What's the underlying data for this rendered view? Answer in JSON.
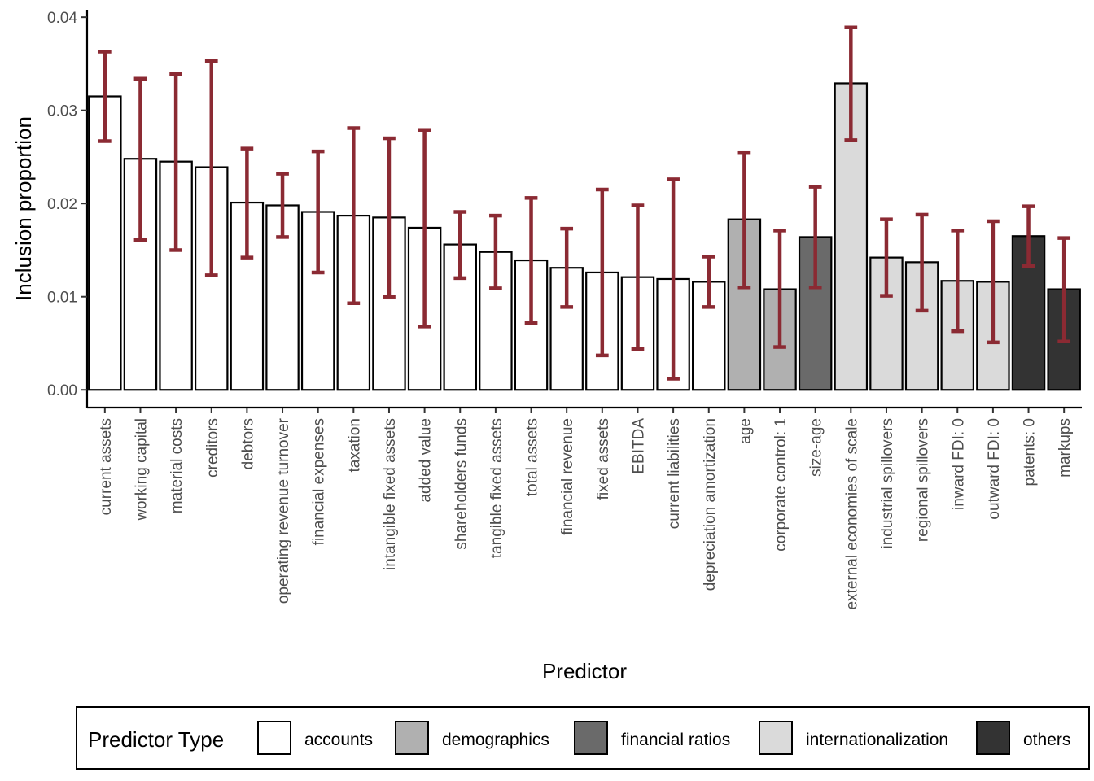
{
  "chart_data": {
    "type": "bar",
    "xlabel": "Predictor",
    "ylabel": "Inclusion proportion",
    "ylim": [
      -0.0019,
      0.0408
    ],
    "yticks": [
      0.0,
      0.01,
      0.02,
      0.03,
      0.04
    ],
    "ytick_labels": [
      "0.00",
      "0.01",
      "0.02",
      "0.03",
      "0.04"
    ],
    "error_bar_color": "#8b2a33",
    "legend": {
      "title": "Predictor Type",
      "position": "bottom",
      "entries": [
        {
          "label": "accounts",
          "color": "#ffffff"
        },
        {
          "label": "demographics",
          "color": "#b0b0b0"
        },
        {
          "label": "financial ratios",
          "color": "#6a6a6a"
        },
        {
          "label": "internationalization",
          "color": "#dadada"
        },
        {
          "label": "others",
          "color": "#333333"
        }
      ]
    },
    "bars": [
      {
        "category": "current assets",
        "value": 0.0315,
        "lower": 0.0267,
        "upper": 0.0363,
        "type": "accounts"
      },
      {
        "category": "working capital",
        "value": 0.0248,
        "lower": 0.0161,
        "upper": 0.0334,
        "type": "accounts"
      },
      {
        "category": "material costs",
        "value": 0.0245,
        "lower": 0.015,
        "upper": 0.0339,
        "type": "accounts"
      },
      {
        "category": "creditors",
        "value": 0.0239,
        "lower": 0.0123,
        "upper": 0.0353,
        "type": "accounts"
      },
      {
        "category": "debtors",
        "value": 0.0201,
        "lower": 0.0142,
        "upper": 0.0259,
        "type": "accounts"
      },
      {
        "category": "operating revenue turnover",
        "value": 0.0198,
        "lower": 0.0164,
        "upper": 0.0232,
        "type": "accounts"
      },
      {
        "category": "financial expenses",
        "value": 0.0191,
        "lower": 0.0126,
        "upper": 0.0256,
        "type": "accounts"
      },
      {
        "category": "taxation",
        "value": 0.0187,
        "lower": 0.0093,
        "upper": 0.0281,
        "type": "accounts"
      },
      {
        "category": "intangible fixed assets",
        "value": 0.0185,
        "lower": 0.01,
        "upper": 0.027,
        "type": "accounts"
      },
      {
        "category": "added value",
        "value": 0.0174,
        "lower": 0.0068,
        "upper": 0.0279,
        "type": "accounts"
      },
      {
        "category": "shareholders funds",
        "value": 0.0156,
        "lower": 0.012,
        "upper": 0.0191,
        "type": "accounts"
      },
      {
        "category": "tangible fixed assets",
        "value": 0.0148,
        "lower": 0.0109,
        "upper": 0.0187,
        "type": "accounts"
      },
      {
        "category": "total assets",
        "value": 0.0139,
        "lower": 0.0072,
        "upper": 0.0206,
        "type": "accounts"
      },
      {
        "category": "financial revenue",
        "value": 0.0131,
        "lower": 0.0089,
        "upper": 0.0173,
        "type": "accounts"
      },
      {
        "category": "fixed assets",
        "value": 0.0126,
        "lower": 0.0037,
        "upper": 0.0215,
        "type": "accounts"
      },
      {
        "category": "EBITDA",
        "value": 0.0121,
        "lower": 0.0044,
        "upper": 0.0198,
        "type": "accounts"
      },
      {
        "category": "current liabilities",
        "value": 0.0119,
        "lower": 0.0012,
        "upper": 0.0226,
        "type": "accounts"
      },
      {
        "category": "depreciation amortization",
        "value": 0.0116,
        "lower": 0.0089,
        "upper": 0.0143,
        "type": "accounts"
      },
      {
        "category": "age",
        "value": 0.0183,
        "lower": 0.011,
        "upper": 0.0255,
        "type": "demographics"
      },
      {
        "category": "corporate control: 1",
        "value": 0.0108,
        "lower": 0.0046,
        "upper": 0.0171,
        "type": "demographics"
      },
      {
        "category": "size-age",
        "value": 0.0164,
        "lower": 0.011,
        "upper": 0.0218,
        "type": "financial ratios"
      },
      {
        "category": "external economies of scale",
        "value": 0.0329,
        "lower": 0.0268,
        "upper": 0.0389,
        "type": "internationalization"
      },
      {
        "category": "industrial spillovers",
        "value": 0.0142,
        "lower": 0.0101,
        "upper": 0.0183,
        "type": "internationalization"
      },
      {
        "category": "regional spillovers",
        "value": 0.0137,
        "lower": 0.0085,
        "upper": 0.0188,
        "type": "internationalization"
      },
      {
        "category": "inward FDI: 0",
        "value": 0.0117,
        "lower": 0.0063,
        "upper": 0.0171,
        "type": "internationalization"
      },
      {
        "category": "outward FDI: 0",
        "value": 0.0116,
        "lower": 0.0051,
        "upper": 0.0181,
        "type": "internationalization"
      },
      {
        "category": "patents: 0",
        "value": 0.0165,
        "lower": 0.0133,
        "upper": 0.0197,
        "type": "others"
      },
      {
        "category": "markups",
        "value": 0.0108,
        "lower": 0.0052,
        "upper": 0.0163,
        "type": "others"
      }
    ]
  }
}
